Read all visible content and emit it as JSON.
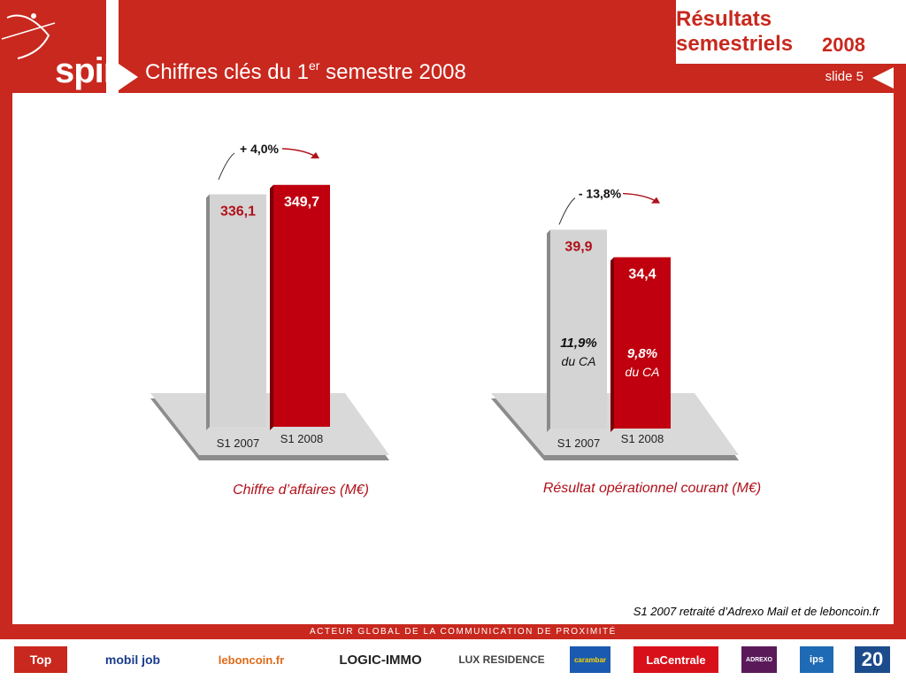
{
  "header": {
    "brand_label": "spir",
    "title_main": "Chiffres clés du 1",
    "title_sup": "er",
    "title_rest": " semestre 2008",
    "top_right_line1": "Résultats semestriels",
    "top_right_line2": "2008",
    "slide_label": "slide 5"
  },
  "footer": {
    "tagline": "ACTEUR GLOBAL DE LA COMMUNICATION DE PROXIMITÉ",
    "note": "S1 2007 retraité d’Adrexo Mail et de leboncoin.fr",
    "logos": [
      "Top",
      "mobil job",
      "leboncoin.fr",
      "LOGIC-IMMO",
      "LUX RESIDENCE",
      "carambar",
      "LaCentrale",
      "ADREXO",
      "ips",
      "20"
    ]
  },
  "colors": {
    "brand_red": "#c8281e",
    "bar_red": "#c0000f",
    "bar_gray": "#d4d4d4"
  },
  "chart_data": [
    {
      "type": "bar",
      "title": "Chiffre d’affaires (M€)",
      "categories": [
        "S1 2007",
        "S1 2008"
      ],
      "values": [
        336.1,
        349.7
      ],
      "value_labels": [
        "336,1",
        "349,7"
      ],
      "change_label": "+ 4,0%"
    },
    {
      "type": "bar",
      "title": "Résultat opérationnel courant (M€)",
      "categories": [
        "S1 2007",
        "S1 2008"
      ],
      "values": [
        39.9,
        34.4
      ],
      "value_labels": [
        "39,9",
        "34,4"
      ],
      "change_label": "- 13,8%",
      "margin_pct": [
        "11,9%",
        "9,8%"
      ],
      "margin_suffix": [
        "du CA",
        "du CA"
      ]
    }
  ]
}
